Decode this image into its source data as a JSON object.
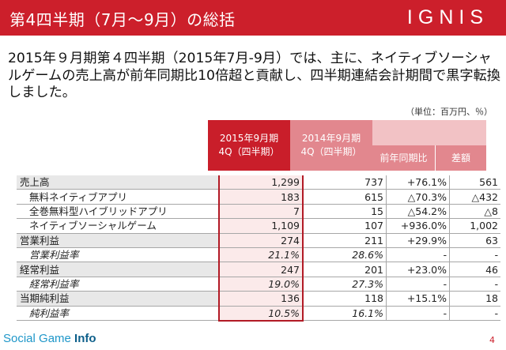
{
  "header": {
    "title": "第4四半期（7月～9月）の総括",
    "logo": "IGNIS"
  },
  "summary": "2015年９月期第４四半期（2015年7月-9月）では、主に、ネイティブソーシャルゲームの売上高が前年同期比10倍超と貢献し、四半期連結会計期間で黒字転換しました。",
  "unit": "（単位：百万円、％）",
  "table": {
    "col_2015_line1": "2015年9月期",
    "col_2015_line2": "4Q（四半期）",
    "col_2014_line1": "2014年9月期",
    "col_2014_line2": "4Q（四半期）",
    "col_yoy": "前年同期比",
    "col_diff": "差額",
    "rows": [
      {
        "label": "売上高",
        "v2015": "1,299",
        "v2014": "737",
        "yoy": "+76.1%",
        "diff": "561"
      },
      {
        "label": "無料ネイティブアプリ",
        "v2015": "183",
        "v2014": "615",
        "yoy": "△70.3%",
        "diff": "△432"
      },
      {
        "label": "全巻無料型ハイブリッドアプリ",
        "v2015": "7",
        "v2014": "15",
        "yoy": "△54.2%",
        "diff": "△8"
      },
      {
        "label": "ネイティブソーシャルゲーム",
        "v2015": "1,109",
        "v2014": "107",
        "yoy": "+936.0%",
        "diff": "1,002"
      },
      {
        "label": "営業利益",
        "v2015": "274",
        "v2014": "211",
        "yoy": "+29.9%",
        "diff": "63"
      },
      {
        "label": "営業利益率",
        "v2015": "21.1%",
        "v2014": "28.6%",
        "yoy": "-",
        "diff": "-"
      },
      {
        "label": "経常利益",
        "v2015": "247",
        "v2014": "201",
        "yoy": "+23.0%",
        "diff": "46"
      },
      {
        "label": "経常利益率",
        "v2015": "19.0%",
        "v2014": "27.3%",
        "yoy": "-",
        "diff": "-"
      },
      {
        "label": "当期純利益",
        "v2015": "136",
        "v2014": "118",
        "yoy": "+15.1%",
        "diff": "18"
      },
      {
        "label": "純利益率",
        "v2015": "10.5%",
        "v2014": "16.1%",
        "yoy": "-",
        "diff": "-"
      }
    ]
  },
  "footer": {
    "site_text": "Social Game",
    "site_bold": "Info",
    "page": "4"
  }
}
